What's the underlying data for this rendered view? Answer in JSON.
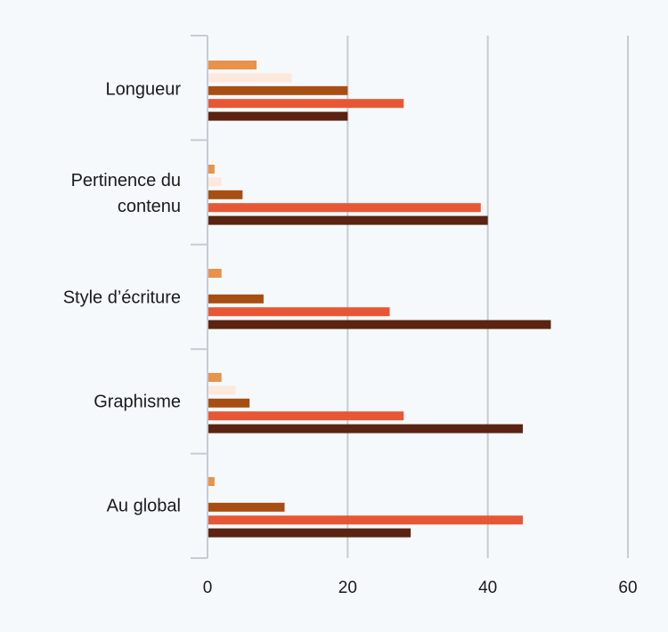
{
  "chart_data": {
    "type": "bar",
    "orientation": "horizontal",
    "categories": [
      "Longueur",
      "Pertinence du contenu",
      "Style d’écriture",
      "Graphisme",
      "Au global"
    ],
    "category_lines": [
      [
        "Longueur"
      ],
      [
        "Pertinence du",
        "contenu"
      ],
      [
        "Style d’écriture"
      ],
      [
        "Graphisme"
      ],
      [
        "Au global"
      ]
    ],
    "series": [
      {
        "color": "#e8924a",
        "values": [
          7,
          1,
          2,
          2,
          1
        ]
      },
      {
        "color": "#fde8dc",
        "values": [
          12,
          2,
          0,
          4,
          0
        ]
      },
      {
        "color": "#a84e12",
        "values": [
          20,
          5,
          8,
          6,
          11
        ]
      },
      {
        "color": "#e85735",
        "values": [
          28,
          39,
          26,
          28,
          45
        ]
      },
      {
        "color": "#5b2312",
        "values": [
          20,
          40,
          49,
          45,
          29
        ]
      }
    ],
    "xlim": [
      0,
      60
    ],
    "xticks": [
      0,
      20,
      40,
      60
    ],
    "tick_labels": [
      "0",
      "20",
      "40",
      "60"
    ],
    "grid": true,
    "legend": "none"
  }
}
